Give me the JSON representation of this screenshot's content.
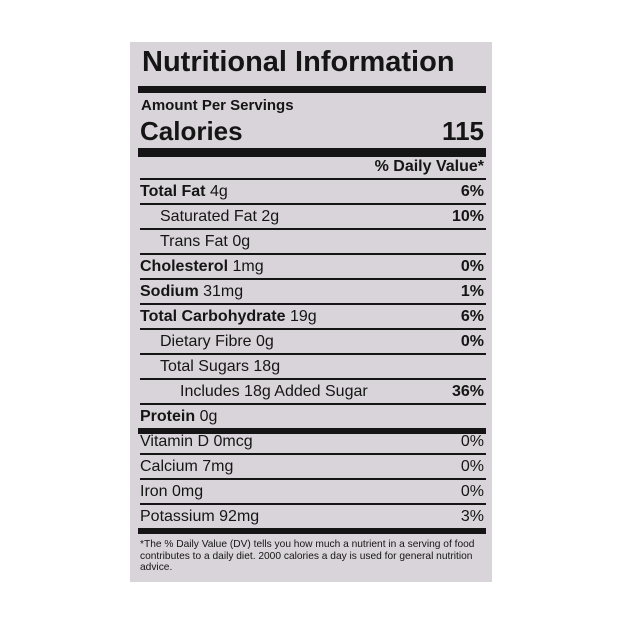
{
  "title": "Nutritional Information",
  "amount_label": "Amount Per Servings",
  "calories": {
    "label": "Calories",
    "value": "115"
  },
  "dv_header": "% Daily Value*",
  "rows": [
    {
      "name": "Total Fat",
      "amount": "4g",
      "dv": "6%"
    },
    {
      "name": "Saturated Fat",
      "amount": "2g",
      "dv": "10%"
    },
    {
      "name": "Trans Fat",
      "amount": "0g"
    },
    {
      "name": "Cholesterol",
      "amount": "1mg",
      "dv": "0%"
    },
    {
      "name": "Sodium",
      "amount": "31mg",
      "dv": "1%"
    },
    {
      "name": "Total Carbohydrate",
      "amount": "19g",
      "dv": "6%"
    },
    {
      "name": "Dietary Fibre",
      "amount": "0g",
      "dv": "0%"
    },
    {
      "name": "Total Sugars",
      "amount": "18g"
    },
    {
      "name": "Includes 18g Added Sugar",
      "dv": "36%"
    },
    {
      "name": "Protein",
      "amount": "0g"
    },
    {
      "name": "Vitamin D",
      "amount": "0mcg",
      "dv": "0%"
    },
    {
      "name": "Calcium",
      "amount": "7mg",
      "dv": "0%"
    },
    {
      "name": "Iron",
      "amount": "0mg",
      "dv": "0%"
    },
    {
      "name": "Potassium",
      "amount": "92mg",
      "dv": "3%"
    }
  ],
  "footnote": "*The % Daily Value (DV) tells you how much a nutrient in a serving of food contributes to a daily diet. 2000 calories a day is used for general nutrition advice."
}
